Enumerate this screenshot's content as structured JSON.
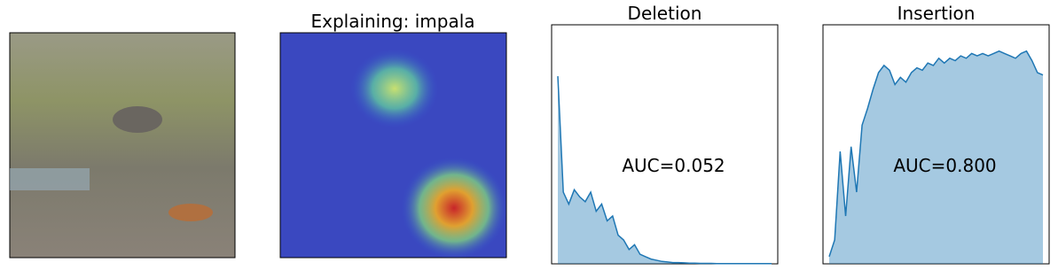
{
  "figure": {
    "heatmap_title": "Explaining: impala"
  },
  "chart_data": [
    {
      "type": "area",
      "title": "Deletion",
      "annotation": "AUC=0.052",
      "color": "#1f77b4",
      "ylim": [
        0,
        1
      ],
      "values": [
        0.785,
        0.3,
        0.25,
        0.31,
        0.28,
        0.26,
        0.3,
        0.22,
        0.25,
        0.18,
        0.2,
        0.12,
        0.1,
        0.06,
        0.08,
        0.04,
        0.03,
        0.02,
        0.015,
        0.01,
        0.008,
        0.005,
        0.005,
        0.004,
        0.003,
        0.003,
        0.002,
        0.002,
        0.002,
        0.001,
        0.001,
        0.001,
        0.001,
        0.001,
        0.001,
        0.001,
        0.001,
        0.001,
        0.001,
        0.001
      ]
    },
    {
      "type": "area",
      "title": "Insertion",
      "annotation": "AUC=0.800",
      "color": "#1f77b4",
      "ylim": [
        0,
        1
      ],
      "values": [
        0.03,
        0.1,
        0.47,
        0.2,
        0.49,
        0.3,
        0.58,
        0.65,
        0.73,
        0.8,
        0.83,
        0.81,
        0.75,
        0.78,
        0.76,
        0.8,
        0.82,
        0.81,
        0.84,
        0.83,
        0.86,
        0.84,
        0.86,
        0.85,
        0.87,
        0.86,
        0.88,
        0.87,
        0.88,
        0.87,
        0.88,
        0.89,
        0.88,
        0.87,
        0.86,
        0.88,
        0.89,
        0.85,
        0.8,
        0.79
      ]
    }
  ]
}
